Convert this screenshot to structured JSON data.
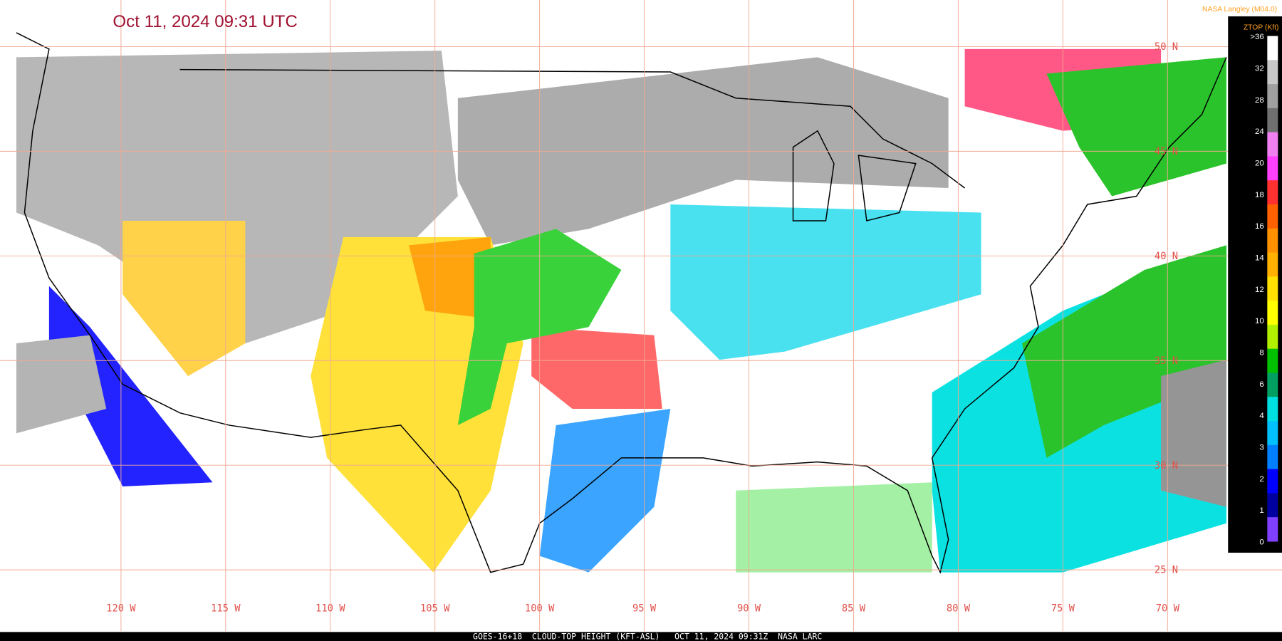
{
  "header": {
    "title": "Oct 11, 2024 09:31 UTC",
    "credit": "NASA Langley (M04.0)"
  },
  "legend": {
    "title": "ZTOP (Kft)",
    "labels": [
      ">36",
      "32",
      "28",
      "24",
      "20",
      "18",
      "16",
      "14",
      "12",
      "10",
      "8",
      "6",
      "4",
      "3",
      "2",
      "1",
      "0"
    ],
    "colors": [
      "#ffffff",
      "#c8c8c8",
      "#a0a0a0",
      "#707070",
      "#f080f0",
      "#ff40ff",
      "#ff3030",
      "#ff6000",
      "#ff9000",
      "#ffb000",
      "#ffe000",
      "#ffff00",
      "#b0f000",
      "#00c000",
      "#00a060",
      "#00e0e0",
      "#00c0ff",
      "#0080ff",
      "#0000ff",
      "#0000a0",
      "#8040ff"
    ]
  },
  "grid": {
    "longitudes": [
      "120 W",
      "115 W",
      "110 W",
      "105 W",
      "100 W",
      "95 W",
      "90 W",
      "85 W",
      "80 W",
      "75 W",
      "70 W"
    ],
    "latitudes": [
      "50 N",
      "45 N",
      "40 N",
      "35 N",
      "30 N",
      "25 N"
    ]
  },
  "footer": {
    "text": "GOES-16+18  CLOUD-TOP HEIGHT (KFT-ASL)   OCT 11, 2024 09:31Z  NASA LARC"
  }
}
